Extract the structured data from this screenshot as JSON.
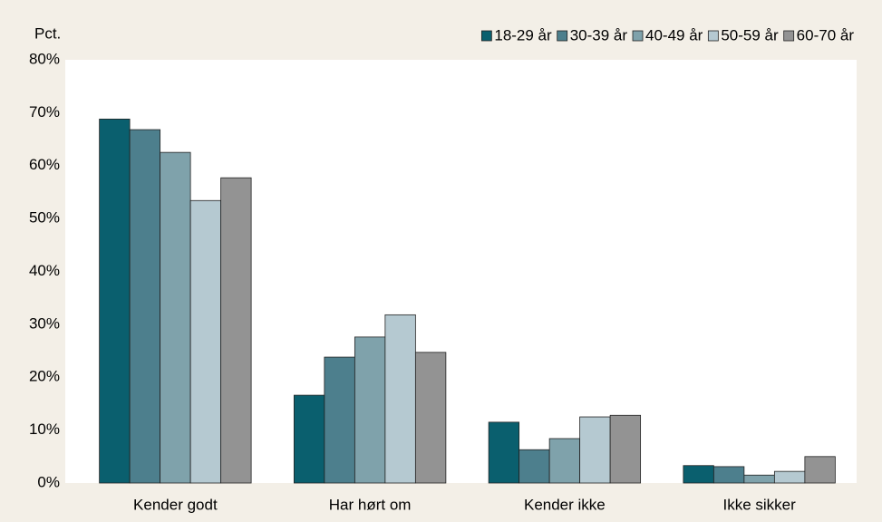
{
  "chart_data": {
    "type": "bar",
    "y_label": "Pct.",
    "categories": [
      "Kender godt",
      "Har hørt om",
      "Kender ikke",
      "Ikke sikker"
    ],
    "series": [
      {
        "name": "18-29 år",
        "color": "#0a5f6e",
        "values": [
          68.8,
          16.6,
          11.5,
          3.3
        ]
      },
      {
        "name": "30-39 år",
        "color": "#4d7f8d",
        "values": [
          66.8,
          23.8,
          6.3,
          3.1
        ]
      },
      {
        "name": "40-49 år",
        "color": "#7fa2ab",
        "values": [
          62.5,
          27.6,
          8.4,
          1.5
        ]
      },
      {
        "name": "50-59 år",
        "color": "#b5c9d1",
        "values": [
          53.4,
          31.8,
          12.5,
          2.2
        ]
      },
      {
        "name": "60-70 år",
        "color": "#939393",
        "values": [
          57.7,
          24.7,
          12.8,
          5.0
        ]
      }
    ],
    "ylim": [
      0,
      80
    ],
    "yticks": [
      {
        "value": 0,
        "label": "0%"
      },
      {
        "value": 10,
        "label": "10%"
      },
      {
        "value": 20,
        "label": "20%"
      },
      {
        "value": 30,
        "label": "30%"
      },
      {
        "value": 40,
        "label": "40%"
      },
      {
        "value": 50,
        "label": "50%"
      },
      {
        "value": 60,
        "label": "60%"
      },
      {
        "value": 70,
        "label": "70%"
      },
      {
        "value": 80,
        "label": "80%"
      }
    ],
    "legend": "top-right"
  }
}
